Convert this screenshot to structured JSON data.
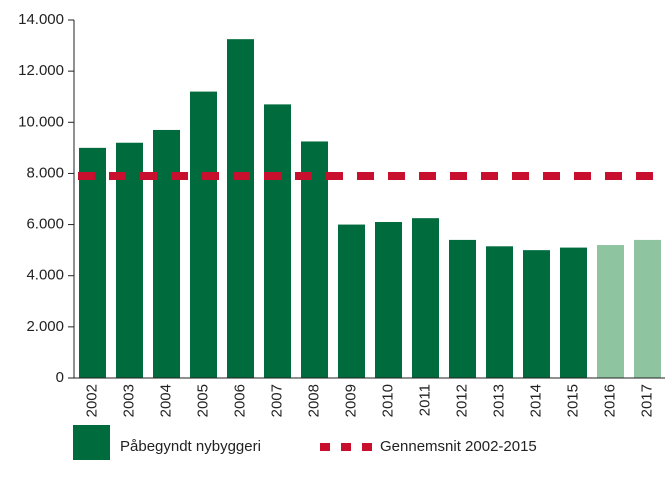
{
  "chart_data": {
    "type": "bar",
    "categories": [
      "2002",
      "2003",
      "2004",
      "2005",
      "2006",
      "2007",
      "2008",
      "2009",
      "2010",
      "2011",
      "2012",
      "2013",
      "2014",
      "2015",
      "2016",
      "2017"
    ],
    "series": [
      {
        "name": "Påbegyndt nybyggeri",
        "color": "#006b3c",
        "values": [
          9000,
          9200,
          9700,
          11200,
          13250,
          10700,
          9250,
          6000,
          6100,
          6250,
          5400,
          5150,
          5000,
          5100,
          5200,
          5400
        ],
        "colors": [
          "#006b3c",
          "#006b3c",
          "#006b3c",
          "#006b3c",
          "#006b3c",
          "#006b3c",
          "#006b3c",
          "#006b3c",
          "#006b3c",
          "#006b3c",
          "#006b3c",
          "#006b3c",
          "#006b3c",
          "#006b3c",
          "#8fc4a0",
          "#8fc4a0"
        ]
      }
    ],
    "reference_line": {
      "name": "Gennemsnit 2002-2015",
      "value": 7900,
      "color": "#c8102e"
    },
    "ylim": [
      0,
      14000
    ],
    "yticks": [
      0,
      {
        "value": 2000,
        "label": "2.000"
      },
      {
        "value": 4000,
        "label": "4.000"
      },
      {
        "value": 6000,
        "label": "6.000"
      },
      {
        "value": 8000,
        "label": "8.000"
      },
      {
        "value": 10000,
        "label": "10.000"
      },
      {
        "value": 12000,
        "label": "12.000"
      },
      {
        "value": 14000,
        "label": "14.000"
      }
    ],
    "grid": false
  }
}
